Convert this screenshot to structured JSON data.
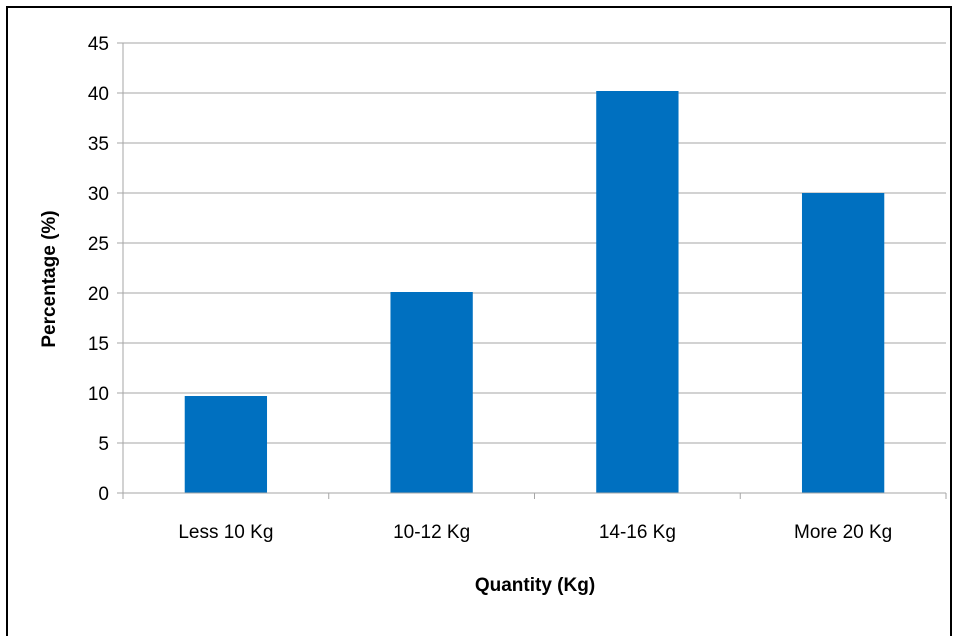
{
  "chart_data": {
    "type": "bar",
    "categories": [
      "Less 10 Kg",
      "10-12 Kg",
      "14-16 Kg",
      "More 20 Kg"
    ],
    "values": [
      9.7,
      20.1,
      40.2,
      30.0
    ],
    "title": "",
    "xlabel": "Quantity (Kg)",
    "ylabel": "Percentage  (%)",
    "ylim": [
      0,
      45
    ],
    "yticks": [
      0,
      5,
      10,
      15,
      20,
      25,
      30,
      35,
      40,
      45
    ],
    "grid": true,
    "legend": "none",
    "bar_color": "#0070C0",
    "grid_color": "#A6A6A6"
  }
}
